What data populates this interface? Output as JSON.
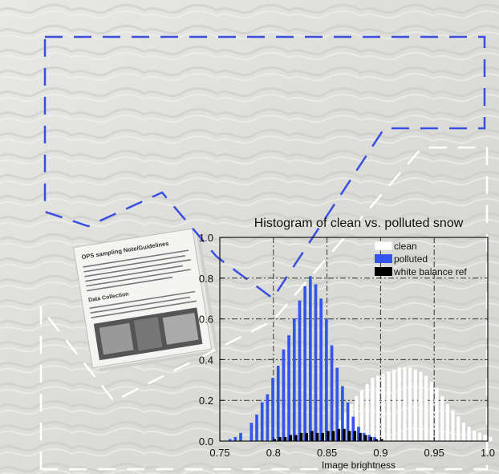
{
  "document": {
    "title": "OPS sampling Note/Guidelines",
    "section": "Data Collection"
  },
  "chart_data": {
    "type": "bar",
    "title": "Histogram of clean vs. polluted snow",
    "xlabel": "Image brightness",
    "ylabel": "",
    "xlim": [
      0.75,
      1.0
    ],
    "ylim": [
      0.0,
      1.0
    ],
    "grid": true,
    "legend_position": "top-right",
    "x_ticks": [
      "0.75",
      "0.8",
      "0.85",
      "0.9",
      "0.95",
      "1.0"
    ],
    "y_ticks": [
      "0.0",
      "0.2",
      "0.4",
      "0.6",
      "0.8",
      "1.0"
    ],
    "bin_width": 0.005,
    "series": [
      {
        "name": "clean",
        "color": "#ffffff",
        "points": [
          [
            0.845,
            0.02
          ],
          [
            0.85,
            0.03
          ],
          [
            0.855,
            0.05
          ],
          [
            0.86,
            0.1
          ],
          [
            0.865,
            0.14
          ],
          [
            0.87,
            0.18
          ],
          [
            0.875,
            0.22
          ],
          [
            0.88,
            0.25
          ],
          [
            0.885,
            0.28
          ],
          [
            0.89,
            0.31
          ],
          [
            0.895,
            0.32
          ],
          [
            0.9,
            0.33
          ],
          [
            0.905,
            0.34
          ],
          [
            0.91,
            0.35
          ],
          [
            0.915,
            0.36
          ],
          [
            0.92,
            0.36
          ],
          [
            0.925,
            0.36
          ],
          [
            0.93,
            0.35
          ],
          [
            0.935,
            0.34
          ],
          [
            0.94,
            0.32
          ],
          [
            0.945,
            0.29
          ],
          [
            0.95,
            0.26
          ],
          [
            0.955,
            0.22
          ],
          [
            0.96,
            0.18
          ],
          [
            0.965,
            0.15
          ],
          [
            0.97,
            0.12
          ],
          [
            0.975,
            0.09
          ],
          [
            0.98,
            0.07
          ],
          [
            0.985,
            0.05
          ],
          [
            0.99,
            0.04
          ],
          [
            0.995,
            0.03
          ],
          [
            1.0,
            0.02
          ]
        ]
      },
      {
        "name": "polluted",
        "color": "#3355ee",
        "points": [
          [
            0.76,
            0.01
          ],
          [
            0.765,
            0.02
          ],
          [
            0.77,
            0.04
          ],
          [
            0.78,
            0.09
          ],
          [
            0.785,
            0.13
          ],
          [
            0.79,
            0.19
          ],
          [
            0.795,
            0.23
          ],
          [
            0.8,
            0.31
          ],
          [
            0.805,
            0.37
          ],
          [
            0.81,
            0.45
          ],
          [
            0.815,
            0.52
          ],
          [
            0.82,
            0.6
          ],
          [
            0.825,
            0.69
          ],
          [
            0.83,
            0.76
          ],
          [
            0.835,
            0.81
          ],
          [
            0.84,
            0.77
          ],
          [
            0.845,
            0.7
          ],
          [
            0.85,
            0.6
          ],
          [
            0.855,
            0.47
          ],
          [
            0.86,
            0.36
          ],
          [
            0.865,
            0.27
          ],
          [
            0.87,
            0.19
          ],
          [
            0.875,
            0.12
          ],
          [
            0.88,
            0.07
          ],
          [
            0.885,
            0.04
          ],
          [
            0.89,
            0.03
          ],
          [
            0.895,
            0.02
          ]
        ]
      },
      {
        "name": "white balance ref",
        "color": "#000000",
        "points": [
          [
            0.8,
            0.01
          ],
          [
            0.805,
            0.02
          ],
          [
            0.81,
            0.02
          ],
          [
            0.815,
            0.03
          ],
          [
            0.82,
            0.03
          ],
          [
            0.825,
            0.04
          ],
          [
            0.83,
            0.04
          ],
          [
            0.835,
            0.05
          ],
          [
            0.84,
            0.04
          ],
          [
            0.845,
            0.04
          ],
          [
            0.85,
            0.05
          ],
          [
            0.855,
            0.05
          ],
          [
            0.86,
            0.06
          ],
          [
            0.865,
            0.06
          ],
          [
            0.87,
            0.05
          ],
          [
            0.875,
            0.05
          ],
          [
            0.88,
            0.04
          ],
          [
            0.885,
            0.03
          ],
          [
            0.89,
            0.02
          ],
          [
            0.895,
            0.01
          ],
          [
            0.9,
            0.01
          ]
        ]
      }
    ],
    "colors": {
      "blue_outline": "#3a4fe0",
      "white_outline": "#ffffff",
      "background_sand": "#dcdcd8",
      "grid": "#333333"
    }
  }
}
